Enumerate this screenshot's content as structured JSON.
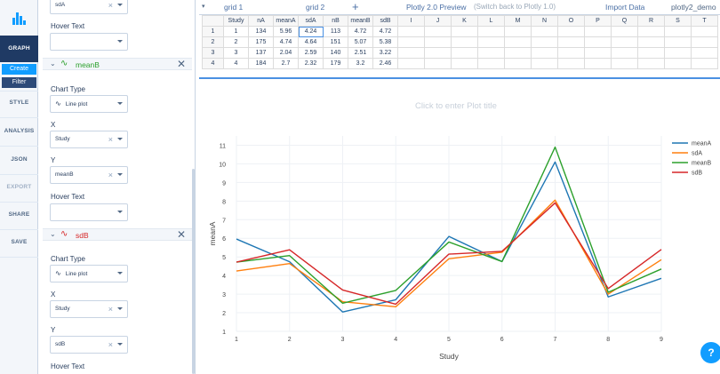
{
  "leftnav": {
    "graph": "GRAPH",
    "create": "Create",
    "filter": "Filter",
    "style": "STYLE",
    "analysis": "ANALYSIS",
    "json": "JSON",
    "export": "EXPORT",
    "share": "SHARE",
    "save": "SAVE"
  },
  "panel": {
    "top_select_value": "sdA",
    "hover_text_label": "Hover Text",
    "traces": [
      {
        "name": "meanB",
        "color": "#2ca02c",
        "chart_type_label": "Chart Type",
        "chart_type_value": "Line plot",
        "x_label": "X",
        "x_value": "Study",
        "y_label": "Y",
        "y_value": "meanB",
        "hover_text_label": "Hover Text",
        "hover_text_value": ""
      },
      {
        "name": "sdB",
        "color": "#d62728",
        "chart_type_label": "Chart Type",
        "chart_type_value": "Line plot",
        "x_label": "X",
        "x_value": "Study",
        "y_label": "Y",
        "y_value": "sdB",
        "hover_text_label": "Hover Text"
      }
    ]
  },
  "tabs": {
    "grid1": "grid 1",
    "grid2": "grid 2",
    "add": "+",
    "preview": "Plotly 2.0 Preview",
    "switch_back": "(Switch back to Plotly 1.0)",
    "import": "Import Data",
    "user": "plotly2_demo"
  },
  "grid": {
    "columns": [
      "Study",
      "nA",
      "meanA",
      "sdA",
      "nB",
      "meanB",
      "sdB",
      "I",
      "J",
      "K",
      "L",
      "M",
      "N",
      "O",
      "P",
      "Q",
      "R",
      "S",
      "T"
    ],
    "rows": [
      [
        "1",
        "1",
        "134",
        "5.96",
        "4.24",
        "113",
        "4.72",
        "4.72"
      ],
      [
        "2",
        "2",
        "175",
        "4.74",
        "4.64",
        "151",
        "5.07",
        "5.38"
      ],
      [
        "3",
        "3",
        "137",
        "2.04",
        "2.59",
        "140",
        "2.51",
        "3.22"
      ],
      [
        "4",
        "4",
        "184",
        "2.7",
        "2.32",
        "179",
        "3.2",
        "2.46"
      ]
    ]
  },
  "plot": {
    "title_placeholder": "Click to enter Plot title"
  },
  "help_icon": "?",
  "colors": {
    "meanA": "#1f77b4",
    "sdA": "#ff7f0e",
    "meanB": "#2ca02c",
    "sdB": "#d62728",
    "accent": "#119dff",
    "nav_active": "#1f3a64"
  },
  "chart_data": {
    "type": "line",
    "title": "",
    "xlabel": "Study",
    "ylabel": "meanA",
    "x": [
      1,
      2,
      3,
      4,
      5,
      6,
      7,
      8,
      9
    ],
    "xlim": [
      1,
      9
    ],
    "ylim": [
      1,
      11.5
    ],
    "xticks": [
      "1",
      "2",
      "3",
      "4",
      "5",
      "6",
      "7",
      "8",
      "9"
    ],
    "yticks": [
      "1",
      "2",
      "3",
      "4",
      "5",
      "6",
      "7",
      "8",
      "9",
      "10",
      "11"
    ],
    "grid": true,
    "legend_position": "top-right",
    "series": [
      {
        "name": "meanA",
        "color": "#1f77b4",
        "values": [
          5.96,
          4.74,
          2.04,
          2.7,
          6.1,
          4.75,
          10.1,
          2.85,
          3.85
        ]
      },
      {
        "name": "sdA",
        "color": "#ff7f0e",
        "values": [
          4.24,
          4.64,
          2.59,
          2.32,
          4.9,
          5.25,
          8.05,
          3.0,
          4.85
        ]
      },
      {
        "name": "meanB",
        "color": "#2ca02c",
        "values": [
          4.72,
          5.07,
          2.51,
          3.2,
          5.8,
          4.75,
          10.9,
          3.1,
          4.35
        ]
      },
      {
        "name": "sdB",
        "color": "#d62728",
        "values": [
          4.72,
          5.38,
          3.22,
          2.46,
          5.15,
          5.3,
          7.9,
          3.3,
          5.4
        ]
      }
    ]
  }
}
